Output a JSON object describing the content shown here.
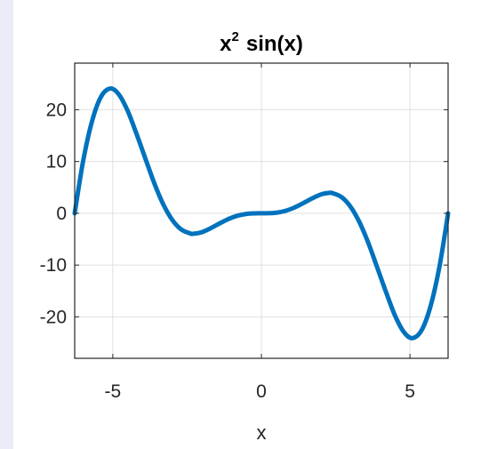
{
  "chart_data": {
    "type": "line",
    "title_base": "x",
    "title_exponent": "2",
    "title_rest": "sin(x)",
    "xlabel": "x",
    "ylabel": "",
    "xlim": [
      -6.2832,
      6.2832
    ],
    "ylim": [
      -28,
      29
    ],
    "xticks": [
      -5,
      0,
      5
    ],
    "yticks": [
      -20,
      -10,
      0,
      10,
      20
    ],
    "xtick_labels": [
      "-5",
      "0",
      "5"
    ],
    "ytick_labels": [
      "-20",
      "-10",
      "0",
      "10",
      "20"
    ],
    "grid": true,
    "series": [
      {
        "function": "x^2*sin(x)",
        "color": "#0072bd",
        "x": [
          -6.2832,
          -6.0,
          -5.7,
          -5.4,
          -5.0871,
          -4.8,
          -4.5,
          -4.2,
          -3.9,
          -3.6,
          -3.3,
          -3.0,
          -2.7,
          -2.4,
          -2.2889,
          -2.0,
          -1.7,
          -1.4,
          -1.1,
          -0.8,
          -0.5,
          -0.2,
          0.0,
          0.2,
          0.5,
          0.8,
          1.1,
          1.4,
          1.7,
          2.0,
          2.2889,
          2.4,
          2.7,
          3.0,
          3.3,
          3.6,
          3.9,
          4.2,
          4.5,
          4.8,
          5.0871,
          5.4,
          5.7,
          6.0,
          6.2832
        ],
        "y": [
          0,
          10.06,
          17.77,
          22.49,
          24.1,
          22.97,
          19.79,
          15.3,
          10.5,
          5.75,
          1.71,
          -1.27,
          -3.11,
          -3.88,
          -3.95,
          -3.64,
          -2.86,
          -1.93,
          -1.08,
          -0.46,
          -0.12,
          -0.01,
          0,
          0.01,
          0.12,
          0.46,
          1.08,
          1.93,
          2.86,
          3.64,
          3.95,
          3.88,
          3.11,
          1.27,
          -1.71,
          -5.75,
          -10.5,
          -15.3,
          -19.79,
          -22.97,
          -24.1,
          -22.49,
          -17.77,
          -10.06,
          0
        ]
      }
    ]
  },
  "colors": {
    "line": "#0072bd",
    "grid": "#e0e0e0",
    "axes": "#262626",
    "page_bg": "#ececf8"
  }
}
